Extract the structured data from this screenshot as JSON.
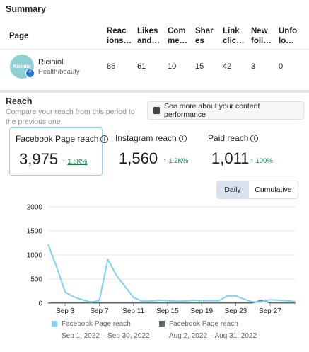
{
  "summary": {
    "title": "Summary",
    "headers": {
      "page": "Page",
      "reactions": "Reactions…",
      "reactions_1": "Reac",
      "reactions_2": "ions…",
      "likes_1": "Likes",
      "likes_2": "and…",
      "comments_1": "Com",
      "comments_2": "me…",
      "shares_1": "Shar",
      "shares_2": "es",
      "link_1": "Link",
      "link_2": "clic…",
      "new_1": "New",
      "new_2": "foll…",
      "unfol_1": "Unfo",
      "unfol_2": "lo…"
    },
    "row": {
      "avatar_text": "Riciniol",
      "name": "Riciniol",
      "category": "Health/beauty",
      "reactions": "86",
      "likes": "61",
      "comments": "10",
      "shares": "15",
      "link_clicks": "42",
      "new_follows": "3",
      "unfollows": "0"
    }
  },
  "reach": {
    "title": "Reach",
    "description": "Compare your reach from this period to the previous one.",
    "performance_button": "See more about your content performance",
    "metrics": [
      {
        "label": "Facebook Page reach",
        "value": "3,975",
        "change": "1.8K%"
      },
      {
        "label": "Instagram reach",
        "value": "1,560",
        "change": "1.2K%"
      },
      {
        "label": "Paid reach",
        "value": "1,011",
        "change": "100%"
      }
    ],
    "toggle": {
      "daily": "Daily",
      "cumulative": "Cumulative"
    },
    "legend": [
      {
        "name": "Facebook Page reach",
        "range": "Sep 1, 2022 – Sep 30, 2022",
        "color": "#7fd3f0"
      },
      {
        "name": "Facebook Page reach",
        "range": "Aug 2, 2022 – Aug 31, 2022",
        "color": "#5f6b6d"
      }
    ]
  },
  "chart_data": {
    "type": "line",
    "x": [
      1,
      2,
      3,
      4,
      5,
      6,
      7,
      8,
      9,
      10,
      11,
      12,
      13,
      14,
      15,
      16,
      17,
      18,
      19,
      20,
      21,
      22,
      23,
      24,
      25,
      26,
      27,
      28,
      29,
      30
    ],
    "xticks": [
      3,
      7,
      11,
      15,
      19,
      23,
      27
    ],
    "xtick_labels": [
      "Sep 3",
      "Sep 7",
      "Sep 11",
      "Sep 15",
      "Sep 19",
      "Sep 23",
      "Sep 27"
    ],
    "ylim": [
      0,
      2000
    ],
    "yticks": [
      0,
      500,
      1000,
      1500,
      2000
    ],
    "grid": true,
    "series": [
      {
        "name": "Facebook Page reach",
        "color": "#7fd3f0",
        "values": [
          1220,
          750,
          230,
          130,
          70,
          20,
          50,
          910,
          580,
          350,
          120,
          40,
          40,
          60,
          50,
          40,
          40,
          60,
          50,
          50,
          50,
          150,
          150,
          80,
          20,
          30,
          70,
          60,
          50,
          30
        ]
      },
      {
        "name": "Facebook Page reach",
        "color": "#5f6b6d",
        "values": [
          5,
          5,
          5,
          5,
          5,
          5,
          5,
          5,
          5,
          5,
          5,
          5,
          5,
          5,
          5,
          5,
          5,
          5,
          5,
          5,
          5,
          5,
          5,
          5,
          5,
          60,
          5,
          5,
          5,
          5
        ]
      }
    ]
  }
}
